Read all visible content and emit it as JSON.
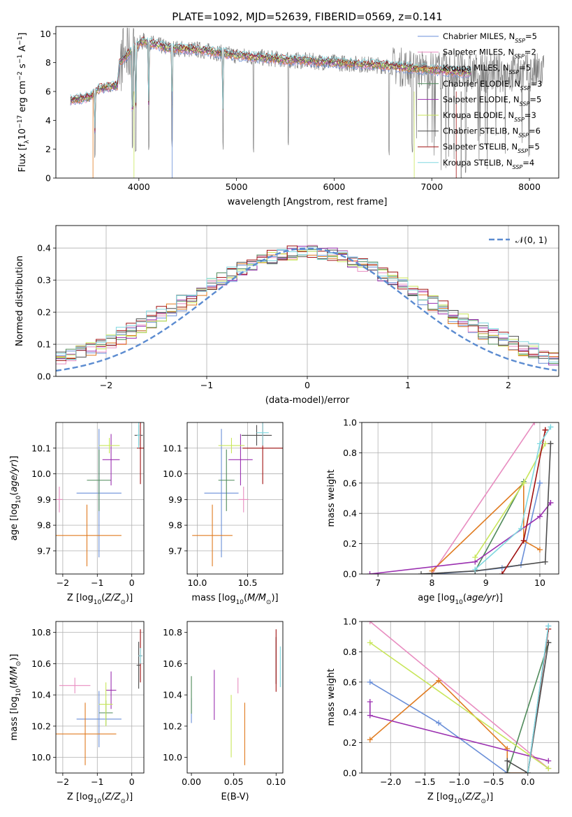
{
  "figure_title": "PLATE=1092, MJD=52639, FIBERID=0569, z=0.141",
  "models": [
    {
      "name": "Chabrier MILES",
      "nssp": "5",
      "color": "#6a8fd8"
    },
    {
      "name": "Salpeter MILES",
      "nssp": "2",
      "color": "#e88cc0"
    },
    {
      "name": "Kroupa MILES",
      "nssp": "5",
      "color": "#e07b20"
    },
    {
      "name": "Chabrier ELODIE",
      "nssp": "3",
      "color": "#4f8a5a"
    },
    {
      "name": "Salpeter ELODIE",
      "nssp": "5",
      "color": "#9b30b0"
    },
    {
      "name": "Kroupa ELODIE",
      "nssp": "3",
      "color": "#c8e65a"
    },
    {
      "name": "Chabrier STELIB",
      "nssp": "6",
      "color": "#4d4d4d"
    },
    {
      "name": "Salpeter STELIB",
      "nssp": "5",
      "color": "#a01010"
    },
    {
      "name": "Kroupa STELIB",
      "nssp": "4",
      "color": "#80d8e0"
    }
  ],
  "nssp_label": "N",
  "nssp_sub": "SSP",
  "chart_data": [
    {
      "id": "spectrum",
      "type": "line",
      "xlabel": "wavelength [Angstrom, rest frame]",
      "ylabel": "Flux [f_λ 10^-17 erg cm^-2 s^-1 A^-1]",
      "xlim": [
        3150,
        8300
      ],
      "ylim": [
        0,
        10.5
      ],
      "xticks": [
        4000,
        5000,
        6000,
        7000,
        8000
      ],
      "yticks": [
        0,
        2,
        4,
        6,
        8,
        10
      ],
      "legend": "upper right",
      "grid": false,
      "continuum": [
        [
          3300,
          5.4
        ],
        [
          3500,
          5.6
        ],
        [
          3600,
          6.2
        ],
        [
          3780,
          6.4
        ],
        [
          3800,
          8.0
        ],
        [
          3950,
          9.0
        ],
        [
          4050,
          9.5
        ],
        [
          4300,
          9.0
        ],
        [
          4600,
          8.9
        ],
        [
          5000,
          8.5
        ],
        [
          5500,
          8.2
        ],
        [
          6000,
          8.0
        ],
        [
          6500,
          7.8
        ],
        [
          7000,
          7.5
        ],
        [
          7400,
          7.3
        ]
      ],
      "absorption_lines": [
        3550,
        3933,
        3968,
        4102,
        4340,
        4861,
        5175,
        5530,
        6563,
        6800,
        7350
      ],
      "data_xrange": [
        3300,
        8150
      ]
    },
    {
      "id": "residuals",
      "type": "histogram",
      "xlabel": "(data-model)/error",
      "ylabel": "Normed distribution",
      "xlim": [
        -2.5,
        2.5
      ],
      "ylim": [
        0,
        0.47
      ],
      "xticks": [
        -2,
        -1,
        0,
        1,
        2
      ],
      "yticks": [
        0.0,
        0.1,
        0.2,
        0.3,
        0.4
      ],
      "grid": true,
      "reference": "N(0,1)",
      "bins": 50
    },
    {
      "id": "age_vs_Z",
      "type": "errorbar",
      "xlabel": "Z [log10(Z/Z⊙)]",
      "ylabel": "age [log10(age/yr)]",
      "xlim": [
        -2.2,
        0.35
      ],
      "ylim": [
        9.61,
        10.2
      ],
      "xticks": [
        -2,
        -1,
        0
      ],
      "yticks": [
        9.7,
        9.8,
        9.9,
        10.0,
        10.1
      ],
      "grid": true,
      "points": [
        {
          "x": -0.95,
          "xerr": 0.65,
          "y": 9.925,
          "yerr": 0.25
        },
        {
          "x": -2.1,
          "xerr": 0.1,
          "y": 9.9,
          "yerr": 0.05
        },
        {
          "x": -1.3,
          "xerr": 1.0,
          "y": 9.76,
          "yerr": 0.12
        },
        {
          "x": -0.95,
          "xerr": 0.35,
          "y": 9.975,
          "yerr": 0.12
        },
        {
          "x": -0.6,
          "xerr": 0.25,
          "y": 10.055,
          "yerr": 0.1
        },
        {
          "x": -0.65,
          "xerr": 0.3,
          "y": 10.11,
          "yerr": 0.03
        },
        {
          "x": 0.2,
          "xerr": 0.12,
          "y": 10.15,
          "yerr": 0.04
        },
        {
          "x": 0.25,
          "xerr": 0.1,
          "y": 10.1,
          "yerr": 0.14
        },
        {
          "x": 0.2,
          "xerr": 0.05,
          "y": 10.15,
          "yerr": 0.05
        }
      ]
    },
    {
      "id": "age_vs_mass",
      "type": "errorbar",
      "xlabel": "mass [log10(M/M⊙)]",
      "ylabel": "",
      "xlim": [
        9.9,
        10.85
      ],
      "ylim": [
        9.61,
        10.2
      ],
      "xticks": [
        10.0,
        10.5
      ],
      "yticks": [
        9.7,
        9.8,
        9.9,
        10.0,
        10.1
      ],
      "grid": true,
      "points": [
        {
          "x": 10.24,
          "xerr": 0.17,
          "y": 9.925,
          "yerr": 0.25
        },
        {
          "x": 10.46,
          "xerr": 0.05,
          "y": 9.9,
          "yerr": 0.05
        },
        {
          "x": 10.15,
          "xerr": 0.2,
          "y": 9.76,
          "yerr": 0.12
        },
        {
          "x": 10.29,
          "xerr": 0.08,
          "y": 9.975,
          "yerr": 0.12
        },
        {
          "x": 10.43,
          "xerr": 0.12,
          "y": 10.055,
          "yerr": 0.1
        },
        {
          "x": 10.34,
          "xerr": 0.13,
          "y": 10.11,
          "yerr": 0.03
        },
        {
          "x": 10.59,
          "xerr": 0.15,
          "y": 10.15,
          "yerr": 0.04
        },
        {
          "x": 10.65,
          "xerr": 0.2,
          "y": 10.1,
          "yerr": 0.14
        },
        {
          "x": 10.65,
          "xerr": 0.06,
          "y": 10.16,
          "yerr": 0.05
        }
      ]
    },
    {
      "id": "weight_vs_age",
      "type": "line",
      "xlabel": "age [log10(age/yr)]",
      "ylabel": "mass weight",
      "xlim": [
        6.7,
        10.35
      ],
      "ylim": [
        0,
        1.0
      ],
      "xticks": [
        7,
        8,
        9,
        10
      ],
      "yticks": [
        0.0,
        0.2,
        0.4,
        0.6,
        0.8,
        1.0
      ],
      "grid": true,
      "series": [
        {
          "x": [
            8.0,
            8.8,
            9.3,
            9.65,
            10.0,
            10.0
          ],
          "y": [
            0.0,
            0.02,
            0.04,
            0.06,
            0.6,
            0.6
          ]
        },
        {
          "x": [
            8.0,
            9.9
          ],
          "y": [
            0.0,
            1.0
          ]
        },
        {
          "x": [
            8.0,
            9.7,
            9.7,
            10.0
          ],
          "y": [
            0.02,
            0.6,
            0.22,
            0.16
          ]
        },
        {
          "x": [
            8.8,
            9.7
          ],
          "y": [
            0.02,
            0.61
          ]
        },
        {
          "x": [
            6.85,
            8.8,
            10.0,
            10.2,
            10.2
          ],
          "y": [
            0.0,
            0.08,
            0.38,
            0.47,
            0.47
          ]
        },
        {
          "x": [
            8.8,
            9.7,
            10.1
          ],
          "y": [
            0.11,
            0.6,
            0.86
          ]
        },
        {
          "x": [
            7.8,
            8.8,
            10.1,
            10.2,
            10.2
          ],
          "y": [
            0.0,
            0.02,
            0.08,
            0.86,
            0.86
          ]
        },
        {
          "x": [
            9.3,
            9.7,
            10.1,
            10.1,
            10.1
          ],
          "y": [
            0.0,
            0.22,
            0.95,
            0.95,
            0.95
          ]
        },
        {
          "x": [
            8.8,
            9.65,
            10.0,
            10.2,
            10.2
          ],
          "y": [
            0.03,
            0.3,
            0.86,
            0.97,
            0.97
          ]
        }
      ]
    },
    {
      "id": "mass_vs_Z",
      "type": "errorbar",
      "xlabel": "Z [log10(Z/Z⊙)]",
      "ylabel": "mass [log10(M/M⊙)]",
      "xlim": [
        -2.2,
        0.35
      ],
      "ylim": [
        9.9,
        10.87
      ],
      "xticks": [
        -2,
        -1,
        0
      ],
      "yticks": [
        10.0,
        10.2,
        10.4,
        10.6,
        10.8
      ],
      "grid": true,
      "points": [
        {
          "x": -0.95,
          "xerr": 0.65,
          "y": 10.245,
          "yerr": 0.18
        },
        {
          "x": -1.65,
          "xerr": 0.45,
          "y": 10.46,
          "yerr": 0.05
        },
        {
          "x": -1.35,
          "xerr": 0.9,
          "y": 10.15,
          "yerr": 0.2
        },
        {
          "x": -0.75,
          "xerr": 0.2,
          "y": 10.285,
          "yerr": 0.08
        },
        {
          "x": -0.6,
          "xerr": 0.15,
          "y": 10.43,
          "yerr": 0.12
        },
        {
          "x": -0.75,
          "xerr": 0.2,
          "y": 10.34,
          "yerr": 0.14
        },
        {
          "x": 0.2,
          "xerr": 0.06,
          "y": 10.59,
          "yerr": 0.15
        },
        {
          "x": 0.25,
          "xerr": 0.05,
          "y": 10.65,
          "yerr": 0.17
        },
        {
          "x": 0.25,
          "xerr": 0.06,
          "y": 10.65,
          "yerr": 0.05
        }
      ]
    },
    {
      "id": "mass_vs_EBV",
      "type": "errorbar",
      "xlabel": "E(B-V)",
      "ylabel": "",
      "xlim": [
        -0.005,
        0.108
      ],
      "ylim": [
        9.9,
        10.87
      ],
      "xticks": [
        0.0,
        0.05,
        0.1
      ],
      "yticks": [
        10.0,
        10.2,
        10.4,
        10.6,
        10.8
      ],
      "grid": false,
      "points": [
        {
          "x": 0.0,
          "y": 10.3,
          "yerr": 0.08
        },
        {
          "x": 0.055,
          "y": 10.46,
          "yerr": 0.05
        },
        {
          "x": 0.063,
          "y": 10.15,
          "yerr": 0.2
        },
        {
          "x": 0.0,
          "y": 10.4,
          "yerr": 0.12
        },
        {
          "x": 0.027,
          "y": 10.4,
          "yerr": 0.16
        },
        {
          "x": 0.047,
          "y": 10.2,
          "yerr": 0.2
        },
        {
          "x": 0.1,
          "y": 10.62,
          "yerr": 0.15
        },
        {
          "x": 0.1,
          "y": 10.62,
          "yerr": 0.2
        },
        {
          "x": 0.105,
          "y": 10.58,
          "yerr": 0.13
        }
      ]
    },
    {
      "id": "weight_vs_Z",
      "type": "line",
      "xlabel": "Z [log10(Z/Z⊙)]",
      "ylabel": "mass weight",
      "xlim": [
        -2.42,
        0.45
      ],
      "ylim": [
        0,
        1.0
      ],
      "xticks": [
        -2.0,
        -1.5,
        -1.0,
        -0.5,
        0.0
      ],
      "yticks": [
        0.0,
        0.2,
        0.4,
        0.6,
        0.8,
        1.0
      ],
      "grid": true,
      "series": [
        {
          "x": [
            -2.3,
            -1.3,
            -0.3,
            0.0,
            0.3
          ],
          "y": [
            0.6,
            0.33,
            0.0,
            0.0,
            0.97
          ]
        },
        {
          "x": [
            -2.3,
            0.3
          ],
          "y": [
            1.0,
            0.03
          ]
        },
        {
          "x": [
            -2.3,
            -1.3,
            -0.3,
            -0.3,
            0.0
          ],
          "y": [
            0.22,
            0.61,
            0.16,
            0.0,
            0.0
          ]
        },
        {
          "x": [
            -0.3,
            0.3
          ],
          "y": [
            0.0,
            0.86
          ]
        },
        {
          "x": [
            -2.3,
            -2.3,
            0.3
          ],
          "y": [
            0.47,
            0.38,
            0.08
          ]
        },
        {
          "x": [
            -2.3,
            0.3
          ],
          "y": [
            0.86,
            0.03
          ]
        },
        {
          "x": [
            -0.3,
            -0.3,
            0.0,
            0.3,
            0.3
          ],
          "y": [
            0.0,
            0.08,
            0.0,
            0.86,
            0.86
          ]
        },
        {
          "x": [
            0.0,
            0.3
          ],
          "y": [
            0.0,
            0.95
          ]
        },
        {
          "x": [
            0.0,
            0.3
          ],
          "y": [
            0.0,
            0.97
          ]
        }
      ]
    }
  ]
}
